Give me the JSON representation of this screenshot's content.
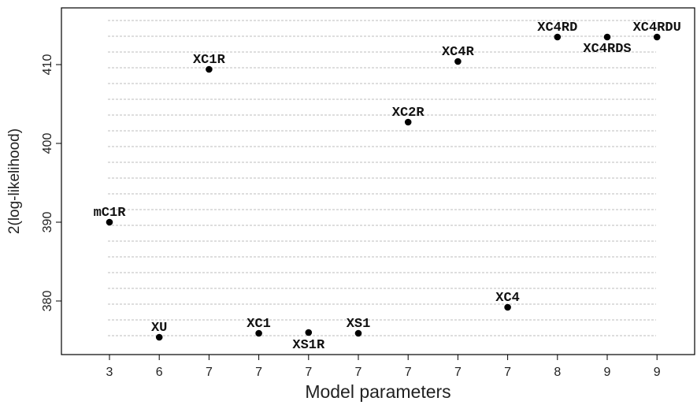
{
  "chart_data": {
    "type": "scatter",
    "xlabel": "Model parameters",
    "ylabel": "2(log-likelihood)",
    "ylim": [
      374.8,
      416.5
    ],
    "y_ticks": [
      380,
      390,
      400,
      410
    ],
    "grid": "horizontal dashed",
    "categories": [
      "3",
      "6",
      "7",
      "7",
      "7",
      "7",
      "7",
      "7",
      "7",
      "8",
      "9",
      "9"
    ],
    "points": [
      {
        "label": "mC1R",
        "category_index": 0,
        "y": 390.0
      },
      {
        "label": "XU",
        "category_index": 1,
        "y": 375.4
      },
      {
        "label": "XC1R",
        "category_index": 2,
        "y": 409.4
      },
      {
        "label": "XC1",
        "category_index": 3,
        "y": 375.9
      },
      {
        "label": "XS1R",
        "category_index": 4,
        "y": 376.0
      },
      {
        "label": "XS1",
        "category_index": 5,
        "y": 375.9
      },
      {
        "label": "XC2R",
        "category_index": 6,
        "y": 402.7
      },
      {
        "label": "XC4R",
        "category_index": 7,
        "y": 410.4
      },
      {
        "label": "XC4",
        "category_index": 8,
        "y": 379.2
      },
      {
        "label": "XC4RD",
        "category_index": 9,
        "y": 413.5
      },
      {
        "label": "XC4RDS",
        "category_index": 10,
        "y": 413.5
      },
      {
        "label": "XC4RDU",
        "category_index": 11,
        "y": 413.5
      }
    ]
  }
}
